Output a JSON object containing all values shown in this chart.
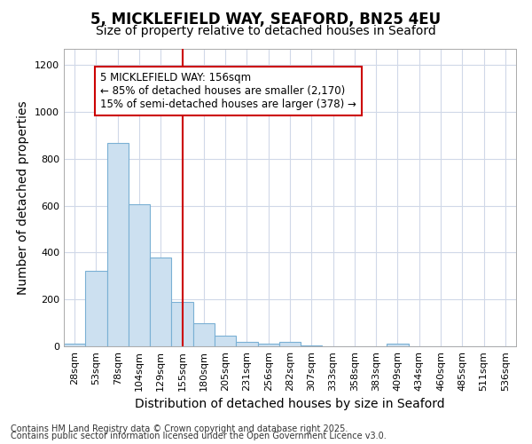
{
  "title": "5, MICKLEFIELD WAY, SEAFORD, BN25 4EU",
  "subtitle": "Size of property relative to detached houses in Seaford",
  "xlabel": "Distribution of detached houses by size in Seaford",
  "ylabel": "Number of detached properties",
  "footnote1": "Contains HM Land Registry data © Crown copyright and database right 2025.",
  "footnote2": "Contains public sector information licensed under the Open Government Licence v3.0.",
  "annotation_line1": "5 MICKLEFIELD WAY: 156sqm",
  "annotation_line2": "← 85% of detached houses are smaller (2,170)",
  "annotation_line3": "15% of semi-detached houses are larger (378) →",
  "categories": [
    "28sqm",
    "53sqm",
    "78sqm",
    "104sqm",
    "129sqm",
    "155sqm",
    "180sqm",
    "205sqm",
    "231sqm",
    "256sqm",
    "282sqm",
    "307sqm",
    "333sqm",
    "358sqm",
    "383sqm",
    "409sqm",
    "434sqm",
    "460sqm",
    "485sqm",
    "511sqm",
    "536sqm"
  ],
  "values": [
    12,
    322,
    868,
    608,
    378,
    190,
    100,
    47,
    18,
    12,
    18,
    5,
    0,
    0,
    0,
    12,
    0,
    0,
    0,
    0,
    0
  ],
  "bar_color": "#cce0f0",
  "bar_edge_color": "#7ab0d4",
  "vline_color": "#cc0000",
  "vline_x": 5,
  "ylim": [
    0,
    1270
  ],
  "yticks": [
    0,
    200,
    400,
    600,
    800,
    1000,
    1200
  ],
  "background_color": "#ffffff",
  "plot_bg_color": "#ffffff",
  "grid_color": "#d0d8e8",
  "annotation_box_color": "#cc0000",
  "title_fontsize": 12,
  "subtitle_fontsize": 10,
  "axis_label_fontsize": 10,
  "tick_fontsize": 8,
  "annotation_fontsize": 8.5,
  "footnote_fontsize": 7
}
